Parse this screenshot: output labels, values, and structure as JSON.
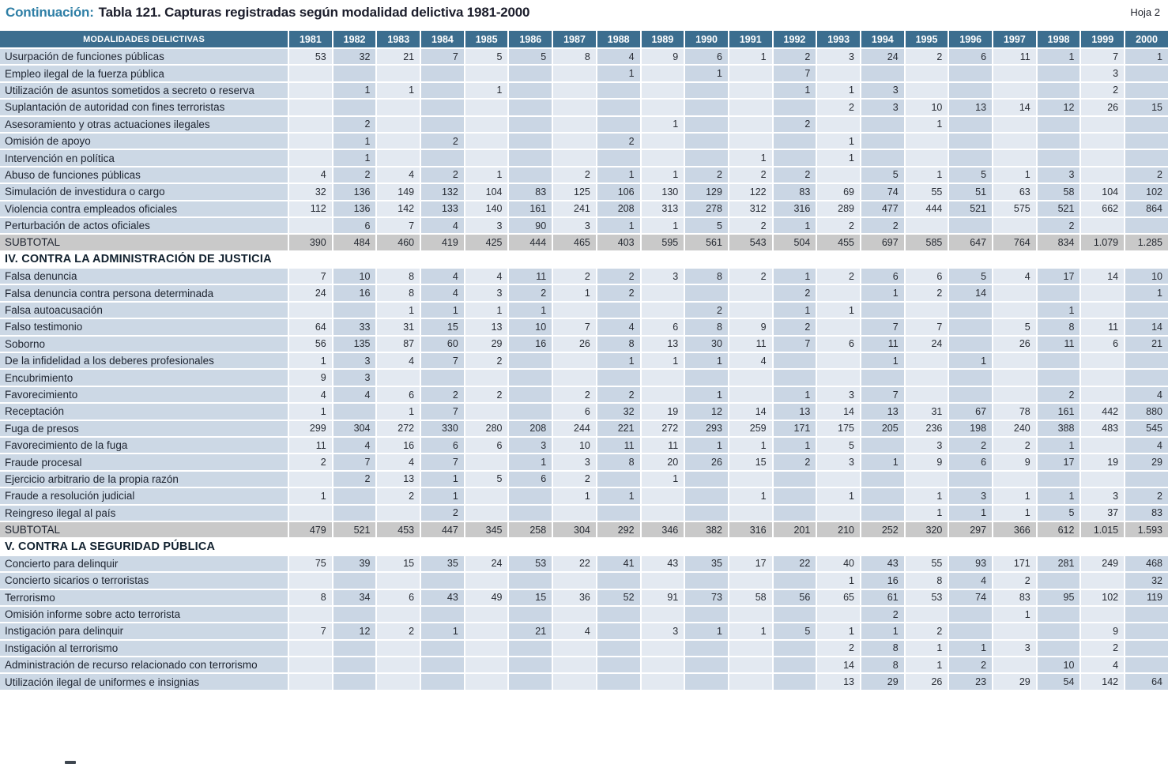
{
  "header": {
    "continuation_label": "Continuación:",
    "title": "Tabla 121.  Capturas registradas según modalidad delictiva 1981-2000",
    "sheet": "Hoja 2"
  },
  "colors": {
    "header_bg": "#3c6e8f",
    "accent_title": "#2f7fa6",
    "label_column_bg": "#ccd8e5",
    "column_light": "#e3e9f1",
    "column_dark": "#cad6e4",
    "subtotal_bg": "#c9c9c9"
  },
  "table": {
    "first_column_header": "MODALIDADES DELICTIVAS",
    "years": [
      "1981",
      "1982",
      "1983",
      "1984",
      "1985",
      "1986",
      "1987",
      "1988",
      "1989",
      "1990",
      "1991",
      "1992",
      "1993",
      "1994",
      "1995",
      "1996",
      "1997",
      "1998",
      "1999",
      "2000"
    ],
    "rows": [
      {
        "type": "data",
        "label": "Usurpación de funciones públicas",
        "values": [
          "53",
          "32",
          "21",
          "7",
          "5",
          "5",
          "8",
          "4",
          "9",
          "6",
          "1",
          "2",
          "3",
          "24",
          "2",
          "6",
          "11",
          "1",
          "7",
          "1"
        ]
      },
      {
        "type": "data",
        "label": "Empleo ilegal de la fuerza pública",
        "values": [
          "",
          "",
          "",
          "",
          "",
          "",
          "",
          "1",
          "",
          "1",
          "",
          "7",
          "",
          "",
          "",
          "",
          "",
          "",
          "3",
          ""
        ]
      },
      {
        "type": "data",
        "label": "Utilización de asuntos sometidos a secreto o reserva",
        "values": [
          "",
          "1",
          "1",
          "",
          "1",
          "",
          "",
          "",
          "",
          "",
          "",
          "1",
          "1",
          "3",
          "",
          "",
          "",
          "",
          "2",
          ""
        ]
      },
      {
        "type": "data",
        "label": "Suplantación de autoridad con fines terroristas",
        "values": [
          "",
          "",
          "",
          "",
          "",
          "",
          "",
          "",
          "",
          "",
          "",
          "",
          "2",
          "3",
          "10",
          "13",
          "14",
          "12",
          "26",
          "15"
        ]
      },
      {
        "type": "data",
        "label": "Asesoramiento y otras actuaciones ilegales",
        "values": [
          "",
          "2",
          "",
          "",
          "",
          "",
          "",
          "",
          "1",
          "",
          "",
          "2",
          "",
          "",
          "1",
          "",
          "",
          "",
          "",
          ""
        ]
      },
      {
        "type": "data",
        "label": "Omisión de apoyo",
        "values": [
          "",
          "1",
          "",
          "2",
          "",
          "",
          "",
          "2",
          "",
          "",
          "",
          "",
          "1",
          "",
          "",
          "",
          "",
          "",
          "",
          ""
        ]
      },
      {
        "type": "data",
        "label": "Intervención en política",
        "values": [
          "",
          "1",
          "",
          "",
          "",
          "",
          "",
          "",
          "",
          "",
          "1",
          "",
          "1",
          "",
          "",
          "",
          "",
          "",
          "",
          ""
        ]
      },
      {
        "type": "data",
        "label": "Abuso de funciones públicas",
        "values": [
          "4",
          "2",
          "4",
          "2",
          "1",
          "",
          "2",
          "1",
          "1",
          "2",
          "2",
          "2",
          "",
          "5",
          "1",
          "5",
          "1",
          "3",
          "",
          "2"
        ]
      },
      {
        "type": "data",
        "label": "Simulación de investidura o cargo",
        "values": [
          "32",
          "136",
          "149",
          "132",
          "104",
          "83",
          "125",
          "106",
          "130",
          "129",
          "122",
          "83",
          "69",
          "74",
          "55",
          "51",
          "63",
          "58",
          "104",
          "102"
        ]
      },
      {
        "type": "data",
        "label": "Violencia contra empleados oficiales",
        "values": [
          "112",
          "136",
          "142",
          "133",
          "140",
          "161",
          "241",
          "208",
          "313",
          "278",
          "312",
          "316",
          "289",
          "477",
          "444",
          "521",
          "575",
          "521",
          "662",
          "864"
        ]
      },
      {
        "type": "data",
        "label": "Perturbación de actos oficiales",
        "values": [
          "",
          "6",
          "7",
          "4",
          "3",
          "90",
          "3",
          "1",
          "1",
          "5",
          "2",
          "1",
          "2",
          "2",
          "",
          "",
          "",
          "2",
          "",
          ""
        ]
      },
      {
        "type": "subtotal",
        "label": "SUBTOTAL",
        "values": [
          "390",
          "484",
          "460",
          "419",
          "425",
          "444",
          "465",
          "403",
          "595",
          "561",
          "543",
          "504",
          "455",
          "697",
          "585",
          "647",
          "764",
          "834",
          "1.079",
          "1.285"
        ]
      },
      {
        "type": "section",
        "label": "IV. CONTRA LA ADMINISTRACIÓN DE JUSTICIA"
      },
      {
        "type": "data",
        "label": "Falsa denuncia",
        "values": [
          "7",
          "10",
          "8",
          "4",
          "4",
          "11",
          "2",
          "2",
          "3",
          "8",
          "2",
          "1",
          "2",
          "6",
          "6",
          "5",
          "4",
          "17",
          "14",
          "10"
        ]
      },
      {
        "type": "data",
        "label": "Falsa denuncia contra persona determinada",
        "values": [
          "24",
          "16",
          "8",
          "4",
          "3",
          "2",
          "1",
          "2",
          "",
          "",
          "",
          "2",
          "",
          "1",
          "2",
          "14",
          "",
          "",
          "",
          "1"
        ]
      },
      {
        "type": "data",
        "label": "Falsa autoacusación",
        "values": [
          "",
          "",
          "1",
          "1",
          "1",
          "1",
          "",
          "",
          "",
          "2",
          "",
          "1",
          "1",
          "",
          "",
          "",
          "",
          "1",
          "",
          ""
        ]
      },
      {
        "type": "data",
        "label": "Falso testimonio",
        "values": [
          "64",
          "33",
          "31",
          "15",
          "13",
          "10",
          "7",
          "4",
          "6",
          "8",
          "9",
          "2",
          "",
          "7",
          "7",
          "",
          "5",
          "8",
          "11",
          "14"
        ]
      },
      {
        "type": "data",
        "label": "Soborno",
        "values": [
          "56",
          "135",
          "87",
          "60",
          "29",
          "16",
          "26",
          "8",
          "13",
          "30",
          "11",
          "7",
          "6",
          "11",
          "24",
          "",
          "26",
          "11",
          "6",
          "21"
        ]
      },
      {
        "type": "data",
        "label": "De la infidelidad a los deberes profesionales",
        "values": [
          "1",
          "3",
          "4",
          "7",
          "2",
          "",
          "",
          "1",
          "1",
          "1",
          "4",
          "",
          "",
          "1",
          "",
          "1",
          "",
          "",
          "",
          ""
        ]
      },
      {
        "type": "data",
        "label": "Encubrimiento",
        "values": [
          "9",
          "3",
          "",
          "",
          "",
          "",
          "",
          "",
          "",
          "",
          "",
          "",
          "",
          "",
          "",
          "",
          "",
          "",
          "",
          ""
        ]
      },
      {
        "type": "data",
        "label": "Favorecimiento",
        "values": [
          "4",
          "4",
          "6",
          "2",
          "2",
          "",
          "2",
          "2",
          "",
          "1",
          "",
          "1",
          "3",
          "7",
          "",
          "",
          "",
          "2",
          "",
          "4"
        ]
      },
      {
        "type": "data",
        "label": "Receptación",
        "values": [
          "1",
          "",
          "1",
          "7",
          "",
          "",
          "6",
          "32",
          "19",
          "12",
          "14",
          "13",
          "14",
          "13",
          "31",
          "67",
          "78",
          "161",
          "442",
          "880"
        ]
      },
      {
        "type": "data",
        "label": "Fuga de presos",
        "values": [
          "299",
          "304",
          "272",
          "330",
          "280",
          "208",
          "244",
          "221",
          "272",
          "293",
          "259",
          "171",
          "175",
          "205",
          "236",
          "198",
          "240",
          "388",
          "483",
          "545"
        ]
      },
      {
        "type": "data",
        "label": "Favorecimiento de la fuga",
        "values": [
          "11",
          "4",
          "16",
          "6",
          "6",
          "3",
          "10",
          "11",
          "11",
          "1",
          "1",
          "1",
          "5",
          "",
          "3",
          "2",
          "2",
          "1",
          "",
          "4"
        ]
      },
      {
        "type": "data",
        "label": "Fraude procesal",
        "values": [
          "2",
          "7",
          "4",
          "7",
          "",
          "1",
          "3",
          "8",
          "20",
          "26",
          "15",
          "2",
          "3",
          "1",
          "9",
          "6",
          "9",
          "17",
          "19",
          "29"
        ]
      },
      {
        "type": "data",
        "label": "Ejercicio arbitrario de la propia razón",
        "values": [
          "",
          "2",
          "13",
          "1",
          "5",
          "6",
          "2",
          "",
          "1",
          "",
          "",
          "",
          "",
          "",
          "",
          "",
          "",
          "",
          "",
          ""
        ]
      },
      {
        "type": "data",
        "label": "Fraude a resolución judicial",
        "values": [
          "1",
          "",
          "2",
          "1",
          "",
          "",
          "1",
          "1",
          "",
          "",
          "1",
          "",
          "1",
          "",
          "1",
          "3",
          "1",
          "1",
          "3",
          "2"
        ]
      },
      {
        "type": "data",
        "label": "Reingreso ilegal al país",
        "values": [
          "",
          "",
          "",
          "2",
          "",
          "",
          "",
          "",
          "",
          "",
          "",
          "",
          "",
          "",
          "1",
          "1",
          "1",
          "5",
          "37",
          "83"
        ]
      },
      {
        "type": "subtotal",
        "label": "SUBTOTAL",
        "values": [
          "479",
          "521",
          "453",
          "447",
          "345",
          "258",
          "304",
          "292",
          "346",
          "382",
          "316",
          "201",
          "210",
          "252",
          "320",
          "297",
          "366",
          "612",
          "1.015",
          "1.593"
        ]
      },
      {
        "type": "section",
        "label": "V. CONTRA LA SEGURIDAD PÚBLICA"
      },
      {
        "type": "data",
        "label": "Concierto para delinquir",
        "values": [
          "75",
          "39",
          "15",
          "35",
          "24",
          "53",
          "22",
          "41",
          "43",
          "35",
          "17",
          "22",
          "40",
          "43",
          "55",
          "93",
          "171",
          "281",
          "249",
          "468"
        ]
      },
      {
        "type": "data",
        "label": "Concierto sicarios o terroristas",
        "values": [
          "",
          "",
          "",
          "",
          "",
          "",
          "",
          "",
          "",
          "",
          "",
          "",
          "1",
          "16",
          "8",
          "4",
          "2",
          "",
          "",
          "32"
        ]
      },
      {
        "type": "data",
        "label": "Terrorismo",
        "values": [
          "8",
          "34",
          "6",
          "43",
          "49",
          "15",
          "36",
          "52",
          "91",
          "73",
          "58",
          "56",
          "65",
          "61",
          "53",
          "74",
          "83",
          "95",
          "102",
          "119"
        ]
      },
      {
        "type": "data",
        "label": "Omisión informe sobre acto  terrorista",
        "values": [
          "",
          "",
          "",
          "",
          "",
          "",
          "",
          "",
          "",
          "",
          "",
          "",
          "",
          "2",
          "",
          "",
          "1",
          "",
          "",
          ""
        ]
      },
      {
        "type": "data",
        "label": "Instigación para delinquir",
        "values": [
          "7",
          "12",
          "2",
          "1",
          "",
          "21",
          "4",
          "",
          "3",
          "1",
          "1",
          "5",
          "1",
          "1",
          "2",
          "",
          "",
          "",
          "9",
          ""
        ]
      },
      {
        "type": "data",
        "label": "Instigación al terrorismo",
        "values": [
          "",
          "",
          "",
          "",
          "",
          "",
          "",
          "",
          "",
          "",
          "",
          "",
          "2",
          "8",
          "1",
          "1",
          "3",
          "",
          "2",
          ""
        ]
      },
      {
        "type": "data",
        "label": "Administración de recurso relacionado con terrorismo",
        "values": [
          "",
          "",
          "",
          "",
          "",
          "",
          "",
          "",
          "",
          "",
          "",
          "",
          "14",
          "8",
          "1",
          "2",
          "",
          "10",
          "4",
          ""
        ]
      },
      {
        "type": "data",
        "label": "Utilización ilegal de uniformes e insignias",
        "values": [
          "",
          "",
          "",
          "",
          "",
          "",
          "",
          "",
          "",
          "",
          "",
          "",
          "13",
          "29",
          "26",
          "23",
          "29",
          "54",
          "142",
          "64"
        ]
      }
    ]
  }
}
